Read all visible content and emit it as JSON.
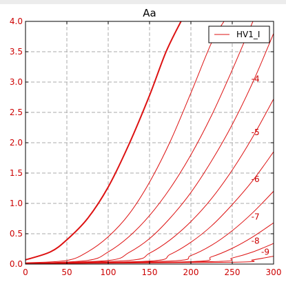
{
  "chart_data": {
    "type": "line",
    "title": "Aa",
    "xlabel": "",
    "ylabel": "",
    "xlim": [
      0,
      300
    ],
    "ylim": [
      0,
      4.0
    ],
    "x_ticks": [
      0,
      50,
      100,
      150,
      200,
      250,
      300
    ],
    "y_ticks": [
      0.0,
      0.5,
      1.0,
      1.5,
      2.0,
      2.5,
      3.0,
      3.5,
      4.0
    ],
    "grid": true,
    "legend": {
      "position": "top-right",
      "entries": [
        "HV1_I"
      ]
    },
    "series": [
      {
        "label": "",
        "points": [
          [
            0,
            0.07
          ],
          [
            30,
            0.2
          ],
          [
            50,
            0.4
          ],
          [
            75,
            0.75
          ],
          [
            100,
            1.27
          ],
          [
            125,
            1.97
          ],
          [
            150,
            2.78
          ],
          [
            170,
            3.5
          ],
          [
            188,
            4.0
          ]
        ]
      },
      {
        "label": "",
        "points": [
          [
            0,
            0.02
          ],
          [
            50,
            0.06
          ],
          [
            75,
            0.2
          ],
          [
            100,
            0.45
          ],
          [
            125,
            0.82
          ],
          [
            150,
            1.35
          ],
          [
            175,
            2.02
          ],
          [
            200,
            2.82
          ],
          [
            225,
            3.65
          ],
          [
            240,
            4.0
          ]
        ]
      },
      {
        "label": "-4",
        "points": [
          [
            0,
            0.01
          ],
          [
            75,
            0.06
          ],
          [
            100,
            0.2
          ],
          [
            125,
            0.45
          ],
          [
            150,
            0.8
          ],
          [
            175,
            1.25
          ],
          [
            200,
            1.8
          ],
          [
            225,
            2.45
          ],
          [
            250,
            3.2
          ],
          [
            275,
            4.0
          ]
        ]
      },
      {
        "label": "-5",
        "points": [
          [
            0,
            0.01
          ],
          [
            100,
            0.06
          ],
          [
            125,
            0.19
          ],
          [
            150,
            0.42
          ],
          [
            175,
            0.76
          ],
          [
            200,
            1.18
          ],
          [
            225,
            1.7
          ],
          [
            250,
            2.3
          ],
          [
            275,
            3.0
          ],
          [
            300,
            3.8
          ]
        ]
      },
      {
        "label": "-6",
        "points": [
          [
            0,
            0.01
          ],
          [
            125,
            0.06
          ],
          [
            150,
            0.18
          ],
          [
            175,
            0.4
          ],
          [
            200,
            0.7
          ],
          [
            225,
            1.08
          ],
          [
            250,
            1.55
          ],
          [
            275,
            2.1
          ],
          [
            300,
            2.72
          ]
        ]
      },
      {
        "label": "-7",
        "points": [
          [
            0,
            0.01
          ],
          [
            150,
            0.05
          ],
          [
            175,
            0.16
          ],
          [
            200,
            0.36
          ],
          [
            225,
            0.63
          ],
          [
            250,
            0.98
          ],
          [
            275,
            1.38
          ],
          [
            300,
            1.85
          ]
        ]
      },
      {
        "label": "-8",
        "points": [
          [
            0,
            0.01
          ],
          [
            175,
            0.05
          ],
          [
            200,
            0.14
          ],
          [
            225,
            0.31
          ],
          [
            250,
            0.55
          ],
          [
            275,
            0.85
          ],
          [
            300,
            1.2
          ]
        ]
      },
      {
        "label": "-9",
        "points": [
          [
            0,
            0.01
          ],
          [
            200,
            0.04
          ],
          [
            225,
            0.12
          ],
          [
            250,
            0.26
          ],
          [
            275,
            0.45
          ],
          [
            300,
            0.68
          ]
        ]
      },
      {
        "label": "",
        "points": [
          [
            0,
            0.01
          ],
          [
            225,
            0.04
          ],
          [
            250,
            0.1
          ],
          [
            275,
            0.2
          ],
          [
            300,
            0.34
          ]
        ]
      },
      {
        "label": "",
        "points": [
          [
            0,
            0.01
          ],
          [
            250,
            0.03
          ],
          [
            275,
            0.07
          ],
          [
            300,
            0.13
          ]
        ]
      }
    ],
    "curve_labels": [
      {
        "text": "-4",
        "x": 278,
        "y": 3.05
      },
      {
        "text": "-5",
        "x": 278,
        "y": 2.17
      },
      {
        "text": "-6",
        "x": 278,
        "y": 1.4
      },
      {
        "text": "-7",
        "x": 278,
        "y": 0.78
      },
      {
        "text": "-8",
        "x": 278,
        "y": 0.38
      },
      {
        "text": "-9",
        "x": 290,
        "y": 0.2
      }
    ],
    "colors": {
      "line": "#dd1111",
      "tick_text": "#cc0000",
      "grid": "#aaaaaa",
      "axes": "#000000"
    }
  }
}
